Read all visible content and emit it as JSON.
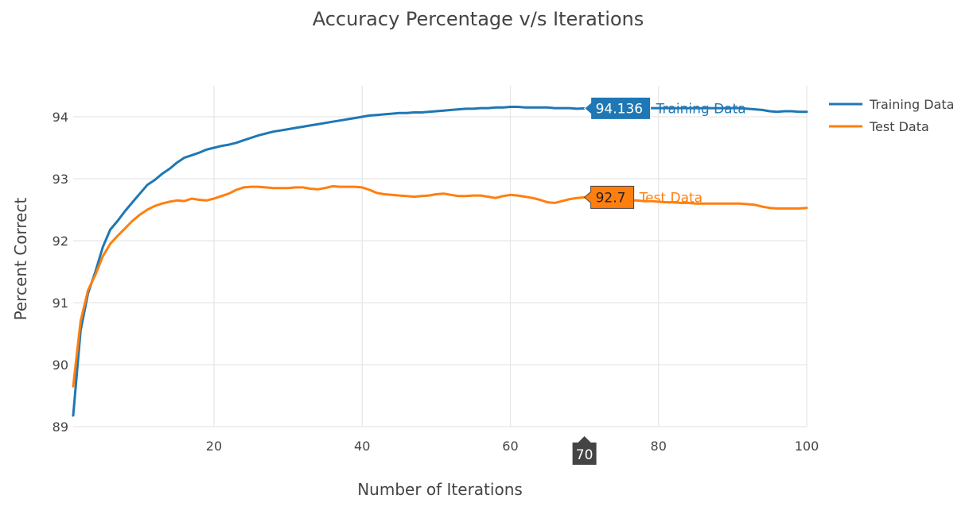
{
  "chart_data": {
    "type": "line",
    "title": "Accuracy Percentage v/s Iterations",
    "xlabel": "Number of Iterations",
    "ylabel": "Percent Correct",
    "xlim": [
      1,
      100
    ],
    "ylim": [
      89,
      94.5
    ],
    "xticks": [
      20,
      40,
      60,
      80,
      100
    ],
    "yticks": [
      89,
      90,
      91,
      92,
      93,
      94
    ],
    "grid": true,
    "legend_position": "top-right",
    "series": [
      {
        "name": "Training Data",
        "color": "#1f77b4",
        "x": [
          1,
          2,
          3,
          4,
          5,
          6,
          7,
          8,
          9,
          10,
          11,
          12,
          13,
          14,
          15,
          16,
          17,
          18,
          19,
          20,
          21,
          22,
          23,
          24,
          25,
          26,
          27,
          28,
          29,
          30,
          31,
          32,
          33,
          34,
          35,
          36,
          37,
          38,
          39,
          40,
          41,
          42,
          43,
          44,
          45,
          46,
          47,
          48,
          49,
          50,
          51,
          52,
          53,
          54,
          55,
          56,
          57,
          58,
          59,
          60,
          61,
          62,
          63,
          64,
          65,
          66,
          67,
          68,
          69,
          70,
          71,
          72,
          73,
          74,
          75,
          76,
          77,
          78,
          79,
          80,
          81,
          82,
          83,
          84,
          85,
          86,
          87,
          88,
          89,
          90,
          91,
          92,
          93,
          94,
          95,
          96,
          97,
          98,
          99,
          100
        ],
        "values": [
          89.18,
          90.55,
          91.15,
          91.5,
          91.9,
          92.18,
          92.32,
          92.48,
          92.62,
          92.76,
          92.9,
          92.98,
          93.08,
          93.16,
          93.26,
          93.34,
          93.38,
          93.42,
          93.47,
          93.5,
          93.53,
          93.55,
          93.58,
          93.62,
          93.66,
          93.7,
          93.73,
          93.76,
          93.78,
          93.8,
          93.82,
          93.84,
          93.86,
          93.88,
          93.9,
          93.92,
          93.94,
          93.96,
          93.98,
          94.0,
          94.02,
          94.03,
          94.04,
          94.05,
          94.06,
          94.06,
          94.07,
          94.07,
          94.08,
          94.09,
          94.1,
          94.11,
          94.12,
          94.13,
          94.13,
          94.14,
          94.14,
          94.15,
          94.15,
          94.16,
          94.16,
          94.15,
          94.15,
          94.15,
          94.15,
          94.14,
          94.14,
          94.14,
          94.13,
          94.136,
          94.14,
          94.14,
          94.14,
          94.14,
          94.14,
          94.14,
          94.14,
          94.14,
          94.14,
          94.14,
          94.14,
          94.14,
          94.14,
          94.14,
          94.14,
          94.14,
          94.14,
          94.14,
          94.14,
          94.14,
          94.14,
          94.13,
          94.12,
          94.11,
          94.09,
          94.08,
          94.09,
          94.09,
          94.08,
          94.08
        ]
      },
      {
        "name": "Test Data",
        "color": "#ff7f0e",
        "x": [
          1,
          2,
          3,
          4,
          5,
          6,
          7,
          8,
          9,
          10,
          11,
          12,
          13,
          14,
          15,
          16,
          17,
          18,
          19,
          20,
          21,
          22,
          23,
          24,
          25,
          26,
          27,
          28,
          29,
          30,
          31,
          32,
          33,
          34,
          35,
          36,
          37,
          38,
          39,
          40,
          41,
          42,
          43,
          44,
          45,
          46,
          47,
          48,
          49,
          50,
          51,
          52,
          53,
          54,
          55,
          56,
          57,
          58,
          59,
          60,
          61,
          62,
          63,
          64,
          65,
          66,
          67,
          68,
          69,
          70,
          71,
          72,
          73,
          74,
          75,
          76,
          77,
          78,
          79,
          80,
          81,
          82,
          83,
          84,
          85,
          86,
          87,
          88,
          89,
          90,
          91,
          92,
          93,
          94,
          95,
          96,
          97,
          98,
          99,
          100
        ],
        "values": [
          89.65,
          90.7,
          91.2,
          91.45,
          91.75,
          91.95,
          92.08,
          92.2,
          92.32,
          92.42,
          92.5,
          92.56,
          92.6,
          92.63,
          92.65,
          92.64,
          92.68,
          92.66,
          92.65,
          92.68,
          92.72,
          92.76,
          92.82,
          92.86,
          92.87,
          92.87,
          92.86,
          92.85,
          92.85,
          92.85,
          92.86,
          92.86,
          92.84,
          92.83,
          92.85,
          92.88,
          92.87,
          92.87,
          92.87,
          92.86,
          92.82,
          92.77,
          92.75,
          92.74,
          92.73,
          92.72,
          92.71,
          92.72,
          92.73,
          92.75,
          92.76,
          92.74,
          92.72,
          92.72,
          92.73,
          92.73,
          92.71,
          92.69,
          92.72,
          92.74,
          92.73,
          92.71,
          92.69,
          92.66,
          92.62,
          92.61,
          92.64,
          92.67,
          92.69,
          92.7,
          92.7,
          92.69,
          92.68,
          92.67,
          92.66,
          92.65,
          92.65,
          92.64,
          92.64,
          92.63,
          92.62,
          92.62,
          92.61,
          92.61,
          92.6,
          92.6,
          92.6,
          92.6,
          92.6,
          92.6,
          92.6,
          92.59,
          92.58,
          92.55,
          92.53,
          92.52,
          92.52,
          92.52,
          92.52,
          92.53
        ]
      }
    ],
    "hover": {
      "x_label": "70",
      "training_value": "94.136",
      "test_value": "92.7"
    }
  }
}
